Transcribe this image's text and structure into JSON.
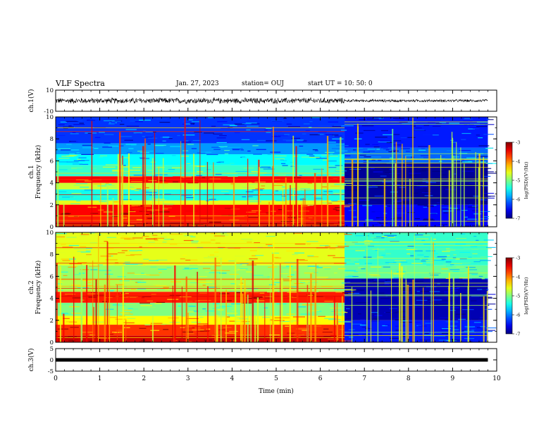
{
  "header": {
    "title": "VLF Spectra",
    "date": "Jan. 27, 2023",
    "station": "station= OUJ",
    "start": "start UT =   10: 50: 0"
  },
  "chart_data": [
    {
      "type": "line",
      "name": "ch1-waveform",
      "ylabel": "ch.1(V)",
      "ylim": [
        -10,
        10
      ],
      "yticks": [
        "10",
        "-10"
      ],
      "xlim": [
        0,
        10
      ],
      "description_values": {
        "amplitude_before_6_5_min": 3.0,
        "amplitude_after_6_5_min": 1.4
      }
    },
    {
      "type": "heatmap",
      "name": "ch1-spectrogram",
      "ylabel": "ch.1 Frequency (kHz)",
      "ylim": [
        0,
        10
      ],
      "yticks": [
        "0",
        "2",
        "4",
        "6",
        "8",
        "10"
      ],
      "xlim": [
        0,
        10
      ],
      "data_end_min": 9.8,
      "transition_min": 6.55,
      "colorbar": {
        "label": "log(PSD)(V²/Hz)",
        "range": [
          -7,
          -3
        ],
        "ticks": [
          "-3",
          "-4",
          "-5",
          "-6",
          "-7"
        ]
      },
      "bands_before": [
        {
          "f0": 0.0,
          "f1": 0.4,
          "level": -3.3
        },
        {
          "f0": 0.4,
          "f1": 1.0,
          "level": -3.6
        },
        {
          "f0": 1.0,
          "f1": 2.0,
          "level": -3.5
        },
        {
          "f0": 2.0,
          "f1": 2.4,
          "level": -4.6
        },
        {
          "f0": 2.4,
          "f1": 3.4,
          "level": -5.4
        },
        {
          "f0": 3.4,
          "f1": 4.0,
          "level": -4.7
        },
        {
          "f0": 4.0,
          "f1": 4.6,
          "level": -3.5
        },
        {
          "f0": 4.6,
          "f1": 5.6,
          "level": -5.3
        },
        {
          "f0": 5.6,
          "f1": 6.6,
          "level": -5.5
        },
        {
          "f0": 6.6,
          "f1": 7.6,
          "level": -5.9
        },
        {
          "f0": 7.6,
          "f1": 10.0,
          "level": -6.3
        }
      ],
      "bands_after": [
        {
          "f0": 0.0,
          "f1": 2.0,
          "level": -6.5
        },
        {
          "f0": 2.0,
          "f1": 5.8,
          "level": -6.9
        },
        {
          "f0": 5.8,
          "f1": 7.2,
          "level": -6.1
        },
        {
          "f0": 7.2,
          "f1": 10.0,
          "level": -6.4
        }
      ],
      "spike_count": 70
    },
    {
      "type": "heatmap",
      "name": "ch2-spectrogram",
      "ylabel": "ch.2 Frequency (kHz)",
      "ylim": [
        0,
        10
      ],
      "yticks": [
        "0",
        "2",
        "4",
        "6",
        "8",
        "10"
      ],
      "xlim": [
        0,
        10
      ],
      "data_end_min": 9.8,
      "transition_min": 6.55,
      "colorbar": {
        "label": "log(PSD)(V²/Hz)",
        "range": [
          -7,
          -3
        ],
        "ticks": [
          "-3",
          "-4",
          "-5",
          "-6",
          "-7"
        ]
      },
      "bands_before": [
        {
          "f0": 0.0,
          "f1": 0.6,
          "level": -3.3
        },
        {
          "f0": 0.6,
          "f1": 1.6,
          "level": -3.7
        },
        {
          "f0": 1.6,
          "f1": 2.4,
          "level": -4.5
        },
        {
          "f0": 2.4,
          "f1": 3.6,
          "level": -5.0
        },
        {
          "f0": 3.6,
          "f1": 4.6,
          "level": -3.6
        },
        {
          "f0": 4.6,
          "f1": 5.8,
          "level": -4.8
        },
        {
          "f0": 5.8,
          "f1": 7.0,
          "level": -4.9
        },
        {
          "f0": 7.0,
          "f1": 10.0,
          "level": -4.6
        }
      ],
      "bands_after": [
        {
          "f0": 0.0,
          "f1": 2.0,
          "level": -6.4
        },
        {
          "f0": 2.0,
          "f1": 5.8,
          "level": -6.8
        },
        {
          "f0": 5.8,
          "f1": 7.0,
          "level": -5.1
        },
        {
          "f0": 7.0,
          "f1": 10.0,
          "level": -5.3
        }
      ],
      "spike_count": 80
    },
    {
      "type": "line",
      "name": "ch3-signal",
      "ylabel": "ch.3(V)",
      "ylim": [
        -5,
        5
      ],
      "yticks": [
        "5",
        "0",
        "-5"
      ],
      "xlim": [
        0,
        10
      ],
      "values": [
        {
          "x": 0,
          "y": 0
        },
        {
          "x": 9.8,
          "y": 0
        }
      ]
    }
  ],
  "xaxis": {
    "label": "Time (min)",
    "ticks": [
      "0",
      "1",
      "2",
      "3",
      "4",
      "5",
      "6",
      "7",
      "8",
      "9",
      "10"
    ]
  },
  "colors": {
    "ink": "#000000",
    "background": "#ffffff"
  }
}
